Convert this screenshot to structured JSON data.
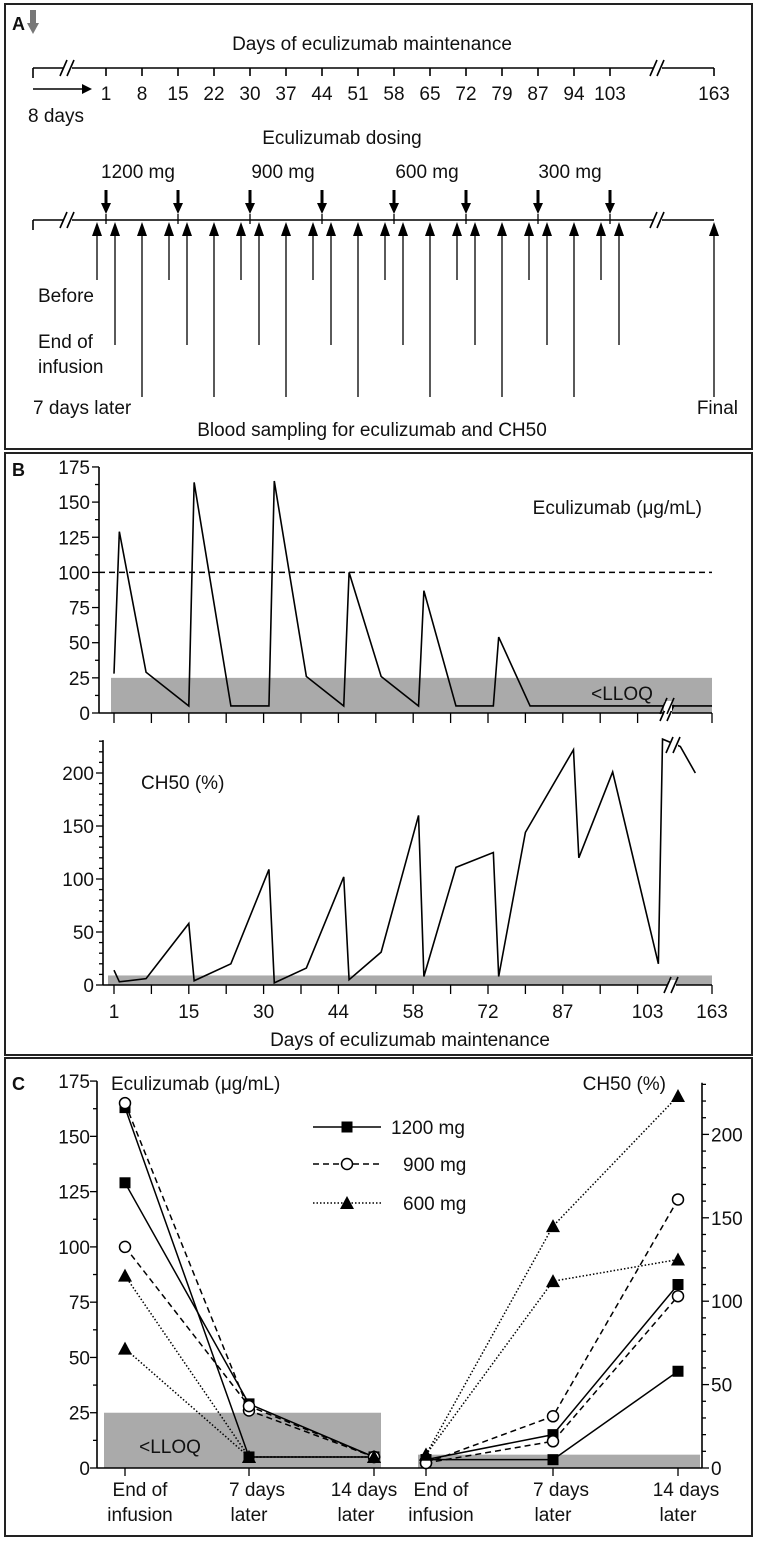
{
  "panel_labels": {
    "a": "A",
    "b": "B",
    "c": "C"
  },
  "panel_a": {
    "title": "Days of eculizumab maintenance",
    "day_ticks": [
      "1",
      "8",
      "15",
      "22",
      "30",
      "37",
      "44",
      "51",
      "58",
      "65",
      "72",
      "79",
      "87",
      "94",
      "103",
      "163"
    ],
    "pre_period_label": "8 days",
    "dosing_label": "Eculizumab dosing",
    "doses": [
      "1200 mg",
      "900 mg",
      "600 mg",
      "300 mg"
    ],
    "sample_labels": {
      "before": "Before",
      "end_line1": "End of",
      "end_line2": "infusion",
      "later": "7 days later",
      "final": "Final"
    },
    "sampling_label": "Blood sampling for eculizumab and CH50",
    "colors": {
      "start_arrow": "#777777"
    }
  },
  "chart_data": [
    {
      "type": "line",
      "panel": "B-top",
      "title": "Eculizumab (μg/mL)",
      "ylabel": "Eculizumab (μg/mL)",
      "ylim": [
        0,
        175
      ],
      "yticks": [
        "0",
        "25",
        "50",
        "75",
        "100",
        "125",
        "150",
        "175"
      ],
      "threshold_line": 100,
      "lloq_band": [
        0,
        25
      ],
      "lloq_label": "<LLOQ",
      "x_axis_break": true,
      "series": [
        {
          "name": "Eculizumab",
          "points": [
            [
              1,
              28
            ],
            [
              2,
              129
            ],
            [
              7,
              29
            ],
            [
              15,
              5
            ],
            [
              16,
              164
            ],
            [
              23,
              5
            ],
            [
              31,
              5
            ],
            [
              32,
              165
            ],
            [
              38,
              26
            ],
            [
              45,
              5
            ],
            [
              46,
              100
            ],
            [
              52,
              26
            ],
            [
              59,
              5
            ],
            [
              60,
              87
            ],
            [
              66,
              5
            ],
            [
              73,
              5
            ],
            [
              74,
              54
            ],
            [
              80,
              5
            ],
            [
              163,
              5
            ]
          ]
        }
      ]
    },
    {
      "type": "line",
      "panel": "B-bottom",
      "title": "CH50 (%)",
      "xlabel": "Days of eculizumab maintenance",
      "xticks": [
        "1",
        "15",
        "30",
        "44",
        "58",
        "72",
        "87",
        "103",
        "163"
      ],
      "ylim": [
        0,
        230
      ],
      "yticks": [
        "0",
        "50",
        "100",
        "150",
        "200"
      ],
      "lloq_band": [
        0,
        9
      ],
      "x_axis_break": true,
      "series": [
        {
          "name": "CH50",
          "points": [
            [
              1,
              14
            ],
            [
              2,
              3
            ],
            [
              7,
              6
            ],
            [
              15,
              58
            ],
            [
              16,
              4
            ],
            [
              23,
              20
            ],
            [
              31,
              109
            ],
            [
              32,
              2
            ],
            [
              38,
              16
            ],
            [
              45,
              102
            ],
            [
              46,
              5
            ],
            [
              52,
              31
            ],
            [
              59,
              160
            ],
            [
              60,
              8
            ],
            [
              66,
              111
            ],
            [
              73,
              125
            ],
            [
              74,
              8
            ],
            [
              79,
              144
            ],
            [
              89,
              222
            ],
            [
              90,
              120
            ],
            [
              97,
              201
            ],
            [
              108,
              20
            ],
            [
              109,
              232
            ],
            [
              125,
              225
            ],
            [
              143,
              200
            ]
          ]
        }
      ]
    },
    {
      "type": "line",
      "panel": "C",
      "left_ylabel": "Eculizumab (μg/mL)",
      "right_ylabel": "CH50 (%)",
      "left_ylim": [
        0,
        175
      ],
      "right_ylim": [
        0,
        231
      ],
      "left_yticks": [
        "0",
        "25",
        "50",
        "75",
        "100",
        "125",
        "150",
        "175"
      ],
      "right_yticks": [
        "0",
        "50",
        "100",
        "150",
        "200"
      ],
      "categories": [
        [
          "End of",
          "infusion"
        ],
        [
          "7 days",
          "later"
        ],
        [
          "14 days",
          "later"
        ]
      ],
      "lloq_label": "<LLOQ",
      "legend": [
        "1200 mg",
        "900 mg",
        "600 mg"
      ],
      "legend_position": "top-center",
      "left_series": [
        {
          "name": "1200 mg",
          "values": [
            129,
            29,
            5
          ]
        },
        {
          "name": "1200 mg",
          "values": [
            163,
            5,
            5
          ]
        },
        {
          "name": "900 mg",
          "values": [
            165,
            26,
            5
          ]
        },
        {
          "name": "900 mg",
          "values": [
            100,
            28,
            5
          ]
        },
        {
          "name": "600 mg",
          "values": [
            87,
            5,
            5
          ]
        },
        {
          "name": "600 mg",
          "values": [
            54,
            5,
            5
          ]
        }
      ],
      "right_series": [
        {
          "name": "1200 mg",
          "values": [
            5,
            20,
            110
          ]
        },
        {
          "name": "1200 mg",
          "values": [
            5,
            5,
            58
          ]
        },
        {
          "name": "900 mg",
          "values": [
            3,
            31,
            161
          ]
        },
        {
          "name": "900 mg",
          "values": [
            3,
            16,
            103
          ]
        },
        {
          "name": "600 mg",
          "values": [
            8,
            145,
            223
          ]
        },
        {
          "name": "600 mg",
          "values": [
            8,
            112,
            125
          ]
        }
      ],
      "colors": {
        "lloq_band": "#aaaaaa",
        "lines": "#000000"
      }
    }
  ]
}
